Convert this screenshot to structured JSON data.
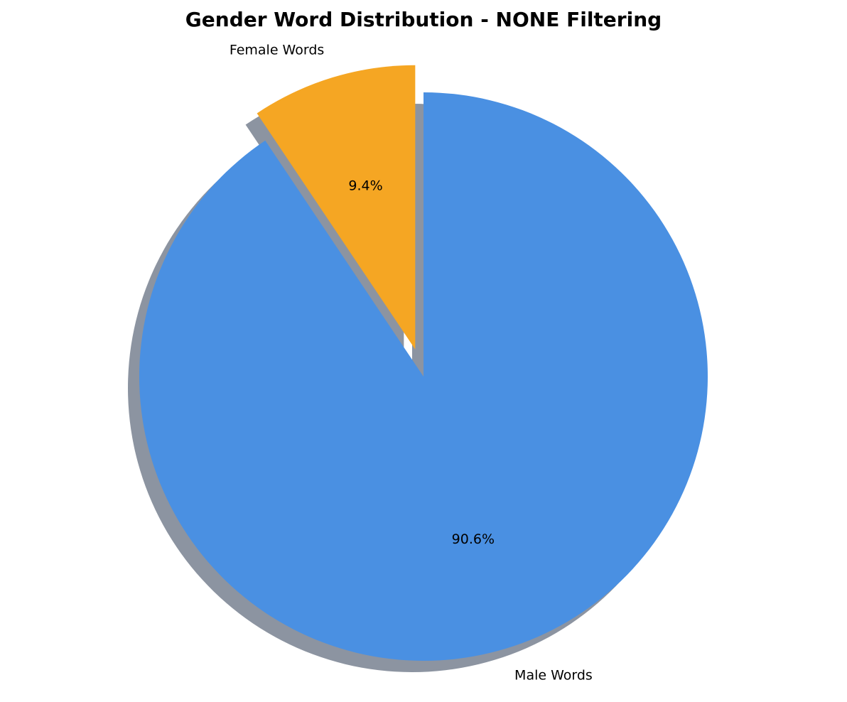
{
  "chart_data": {
    "type": "pie",
    "title": "Gender Word Distribution - NONE Filtering",
    "start_angle_deg": 90,
    "direction": "clockwise",
    "shadow": true,
    "slices": [
      {
        "label": "Male Words",
        "value": 90.6,
        "pct_label": "90.6%",
        "color": "#4a90e2",
        "explode": 0
      },
      {
        "label": "Female Words",
        "value": 9.4,
        "pct_label": "9.4%",
        "color": "#f5a623",
        "explode": 0.1
      }
    ]
  }
}
